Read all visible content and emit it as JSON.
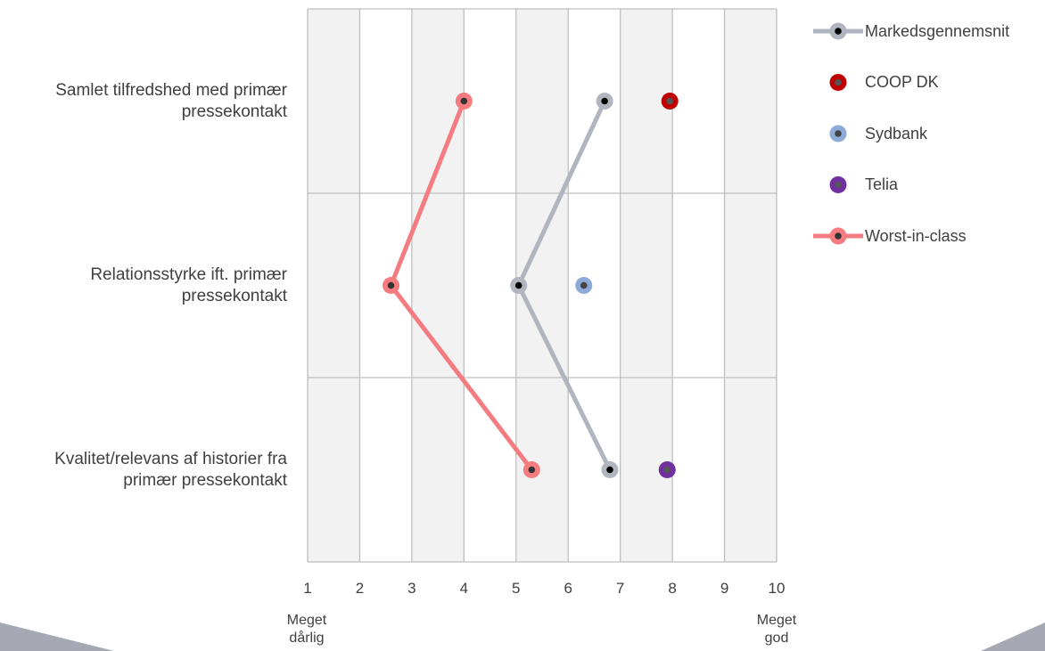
{
  "chart_data": {
    "type": "line",
    "orientation": "horizontal",
    "categories": [
      "Samlet tilfredshed med primær pressekontakt",
      "Relationsstyrke ift. primær pressekontakt",
      "Kvalitet/relevans af historier fra primær pressekontakt"
    ],
    "category_lines": [
      [
        "Samlet tilfredshed med primær",
        "pressekontakt"
      ],
      [
        "Relationsstyrke ift. primær",
        "pressekontakt"
      ],
      [
        "Kvalitet/relevans af historier fra",
        "primær pressekontakt"
      ]
    ],
    "xlim": [
      1,
      10
    ],
    "xticks": [
      "1",
      "2",
      "3",
      "4",
      "5",
      "6",
      "7",
      "8",
      "9",
      "10"
    ],
    "x_end_labels": {
      "low": [
        "Meget",
        "dårlig"
      ],
      "high": [
        "Meget",
        "god"
      ]
    },
    "grid": true,
    "legend_position": "top-right",
    "series": [
      {
        "name": "Markedsgennemsnit",
        "values": [
          6.7,
          5.05,
          6.8
        ],
        "style": "line",
        "color": "#b0b5bf",
        "dot": "#000000"
      },
      {
        "name": "COOP DK",
        "values": [
          7.95,
          null,
          null
        ],
        "style": "marker",
        "color": "#c00000",
        "dot": "#555555"
      },
      {
        "name": "Sydbank",
        "values": [
          null,
          6.3,
          null
        ],
        "style": "marker",
        "color": "#8eaad8",
        "dot": "#444444"
      },
      {
        "name": "Telia",
        "values": [
          null,
          null,
          7.9
        ],
        "style": "marker",
        "color": "#7030a0",
        "dot": "#555555"
      },
      {
        "name": "Worst-in-class",
        "values": [
          4.0,
          2.6,
          5.3
        ],
        "style": "line",
        "color": "#f47c80",
        "dot": "#333333"
      }
    ]
  },
  "colors": {
    "plot_bg": "#f2f2f2",
    "grid": "#bfbfbf",
    "text": "#404040",
    "corner": "#a6a9b3"
  }
}
